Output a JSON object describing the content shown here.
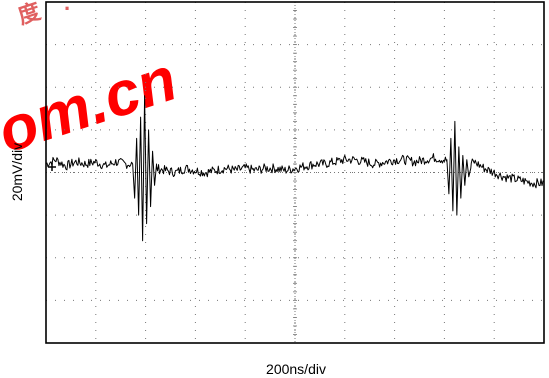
{
  "watermark": {
    "text": "om.cn",
    "color": "#ff0000"
  },
  "colors": {
    "trace": "#000000",
    "frame": "#000000",
    "grid": "#777777",
    "background": "#ffffff"
  },
  "chart_data": {
    "type": "line",
    "title": "",
    "xlabel": "200ns/div",
    "ylabel": "20mV/div",
    "divisions": {
      "x": 10,
      "y": 8
    },
    "grid": true,
    "grid_style": "dotted",
    "xlim": [
      0,
      10
    ],
    "ylim": [
      -4,
      4
    ],
    "series": [
      {
        "type": "baseline",
        "x": [
          0.0,
          0.2,
          0.4,
          0.6,
          0.8,
          1.0,
          1.2,
          1.4,
          1.6,
          1.8,
          2.0,
          2.2,
          2.4,
          2.6,
          2.8,
          3.0,
          3.2,
          3.4,
          3.6,
          3.8,
          4.0,
          4.2,
          4.4,
          4.6,
          4.8,
          5.0,
          5.2,
          5.4,
          5.6,
          5.8,
          6.0,
          6.2,
          6.4,
          6.6,
          6.8,
          7.0,
          7.2,
          7.4,
          7.6,
          7.8,
          8.0,
          8.2,
          8.4,
          8.6,
          8.8,
          9.0,
          9.2,
          9.4,
          9.6,
          9.8,
          10.0
        ],
        "y": [
          0.2,
          0.3,
          0.15,
          0.25,
          0.2,
          0.25,
          0.15,
          0.25,
          0.2,
          0.2,
          0.2,
          0.1,
          0.05,
          0.0,
          0.1,
          0.05,
          0.0,
          0.05,
          0.1,
          0.05,
          0.1,
          0.05,
          0.1,
          0.1,
          0.05,
          0.1,
          0.15,
          0.2,
          0.2,
          0.25,
          0.3,
          0.3,
          0.25,
          0.2,
          0.25,
          0.3,
          0.3,
          0.25,
          0.3,
          0.35,
          0.3,
          0.2,
          0.15,
          0.25,
          0.1,
          0.0,
          -0.1,
          -0.15,
          -0.2,
          -0.25,
          -0.25
        ]
      }
    ],
    "bursts": [
      {
        "x": [
          1.74,
          1.78,
          1.82,
          1.86,
          1.9,
          1.94,
          1.98,
          2.02,
          2.06,
          2.1,
          2.14,
          2.18,
          2.22
        ],
        "y": [
          0.2,
          -0.6,
          0.8,
          -1.0,
          1.3,
          -1.6,
          1.8,
          -1.2,
          1.0,
          -0.8,
          0.5,
          -0.3,
          0.2
        ]
      },
      {
        "x": [
          8.05,
          8.09,
          8.13,
          8.17,
          8.21,
          8.25,
          8.29,
          8.33,
          8.37,
          8.41,
          8.45,
          8.49,
          8.53
        ],
        "y": [
          0.3,
          -0.5,
          0.8,
          -0.9,
          1.2,
          -1.0,
          0.6,
          -0.6,
          0.4,
          -0.3,
          0.3,
          -0.1,
          0.1
        ]
      }
    ]
  }
}
